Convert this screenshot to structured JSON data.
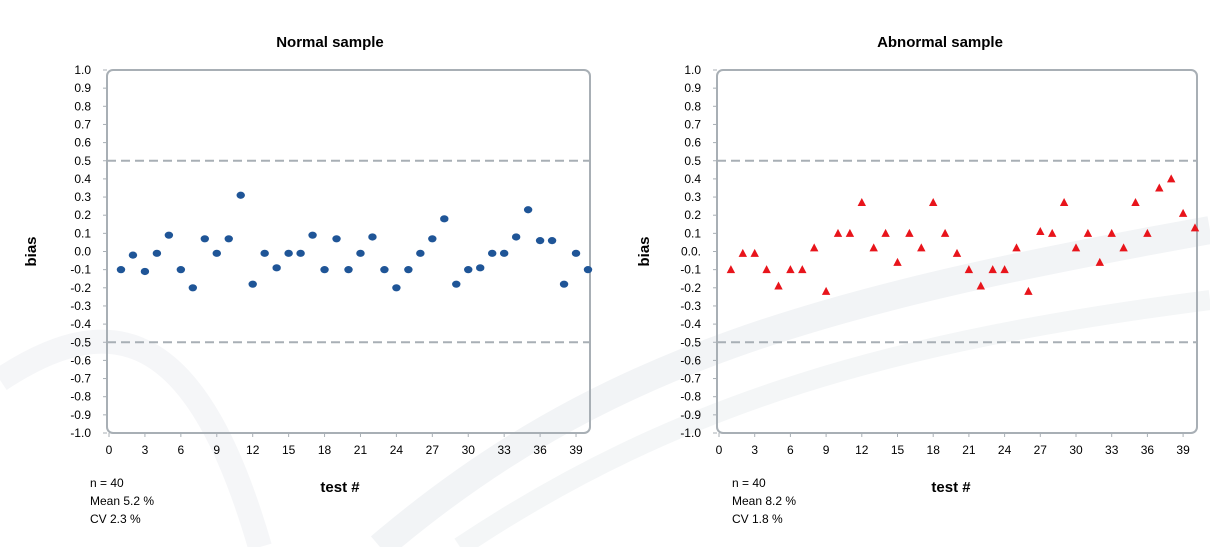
{
  "chart_data": [
    {
      "type": "scatter",
      "title": "Normal sample",
      "xlabel": "test #",
      "ylabel": "bias",
      "xlim": [
        0,
        40
      ],
      "ylim": [
        -1.0,
        1.0
      ],
      "x_ticks": [
        "0",
        "3",
        "6",
        "9",
        "12",
        "15",
        "18",
        "21",
        "24",
        "27",
        "30",
        "33",
        "36",
        "39"
      ],
      "y_ticks": [
        "1.0",
        "0.9",
        "0.8",
        "0.7",
        "0.6",
        "0.5",
        "0.4",
        "0.3",
        "0.2",
        "0.1",
        "0.0",
        "-0.1",
        "-0.2",
        "-0.3",
        "-0.4",
        "-0.5",
        "-0.6",
        "-0.7",
        "-0.8",
        "-0.9",
        "-1.0"
      ],
      "reference_lines": [
        0.5,
        -0.5
      ],
      "marker": "circle",
      "color": "#1f5597",
      "series": [
        {
          "x": [
            1,
            2,
            3,
            4,
            5,
            6,
            7,
            8,
            9,
            10,
            11,
            12,
            13,
            14,
            15,
            16,
            17,
            18,
            19,
            20,
            21,
            22,
            23,
            24,
            25,
            26,
            27,
            28,
            29,
            30,
            31,
            32,
            33,
            34,
            35,
            36,
            37,
            38,
            39,
            40
          ],
          "values": [
            -0.1,
            -0.02,
            -0.11,
            -0.01,
            0.09,
            -0.1,
            -0.2,
            0.07,
            -0.01,
            0.07,
            0.31,
            -0.18,
            -0.01,
            -0.09,
            -0.01,
            -0.01,
            0.09,
            -0.1,
            0.07,
            -0.1,
            -0.01,
            0.08,
            -0.1,
            -0.2,
            -0.1,
            -0.01,
            0.07,
            0.18,
            -0.18,
            -0.1,
            -0.09,
            -0.01,
            -0.01,
            0.08,
            0.23,
            0.06,
            0.06,
            -0.18,
            -0.01,
            -0.1
          ]
        }
      ],
      "stats": {
        "n": "n = 40",
        "mean": "Mean 5.2 %",
        "cv": "CV 2.3 %"
      }
    },
    {
      "type": "scatter",
      "title": "Abnormal sample",
      "xlabel": "test #",
      "ylabel": "bias",
      "xlim": [
        0,
        40
      ],
      "ylim": [
        -1.0,
        1.0
      ],
      "x_ticks": [
        "0",
        "3",
        "6",
        "9",
        "12",
        "15",
        "18",
        "21",
        "24",
        "27",
        "30",
        "33",
        "36",
        "39"
      ],
      "y_ticks": [
        "1.0",
        "0.9",
        "0.8",
        "0.7",
        "0.6",
        "0.5",
        "0.4",
        "0.3",
        "0.2",
        "0.1",
        "0.0.",
        "-0.1",
        "-0.2",
        "-0.3",
        "-0.4",
        "-0.5",
        "-0.6",
        "-0.7",
        "-0.8",
        "-0.9",
        "-1.0"
      ],
      "reference_lines": [
        0.5,
        -0.5
      ],
      "marker": "triangle",
      "color": "#e8141b",
      "series": [
        {
          "x": [
            1,
            2,
            3,
            4,
            5,
            6,
            7,
            8,
            9,
            10,
            11,
            12,
            13,
            14,
            15,
            16,
            17,
            18,
            19,
            20,
            21,
            22,
            23,
            24,
            25,
            26,
            27,
            28,
            29,
            30,
            31,
            32,
            33,
            34,
            35,
            36,
            37,
            38,
            39,
            40
          ],
          "values": [
            -0.1,
            -0.01,
            -0.01,
            -0.1,
            -0.19,
            -0.1,
            -0.1,
            0.02,
            -0.22,
            0.1,
            0.1,
            0.27,
            0.02,
            0.1,
            -0.06,
            0.1,
            0.02,
            0.27,
            0.1,
            -0.01,
            -0.1,
            -0.19,
            -0.1,
            -0.1,
            0.02,
            -0.22,
            0.11,
            0.1,
            0.27,
            0.02,
            0.1,
            -0.06,
            0.1,
            0.02,
            0.27,
            0.1,
            0.35,
            0.4,
            0.21,
            0.13
          ]
        }
      ],
      "stats": {
        "n": "n = 40",
        "mean": "Mean 8.2 %",
        "cv": "CV 1.8 %"
      }
    }
  ]
}
